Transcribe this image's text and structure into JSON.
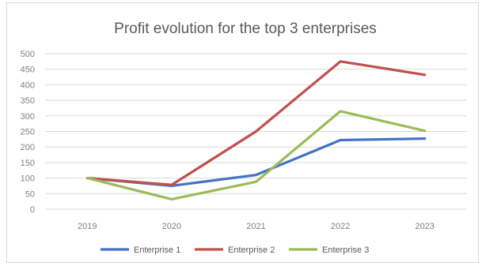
{
  "chart_data": {
    "type": "line",
    "title": "Profit evolution for the top 3 enterprises",
    "categories": [
      "2019",
      "2020",
      "2021",
      "2022",
      "2023"
    ],
    "ylim": [
      0,
      500
    ],
    "yticks": [
      0,
      50,
      100,
      150,
      200,
      250,
      300,
      350,
      400,
      450,
      500
    ],
    "grid": true,
    "legend_position": "bottom",
    "series": [
      {
        "name": "Enterprise 1",
        "color": "#4472c4",
        "values": [
          100,
          75,
          110,
          222,
          227
        ]
      },
      {
        "name": "Enterprise 2",
        "color": "#c0504d",
        "values": [
          100,
          78,
          250,
          475,
          432
        ]
      },
      {
        "name": "Enterprise 3",
        "color": "#9bbb59",
        "values": [
          100,
          32,
          88,
          315,
          252
        ]
      }
    ]
  }
}
